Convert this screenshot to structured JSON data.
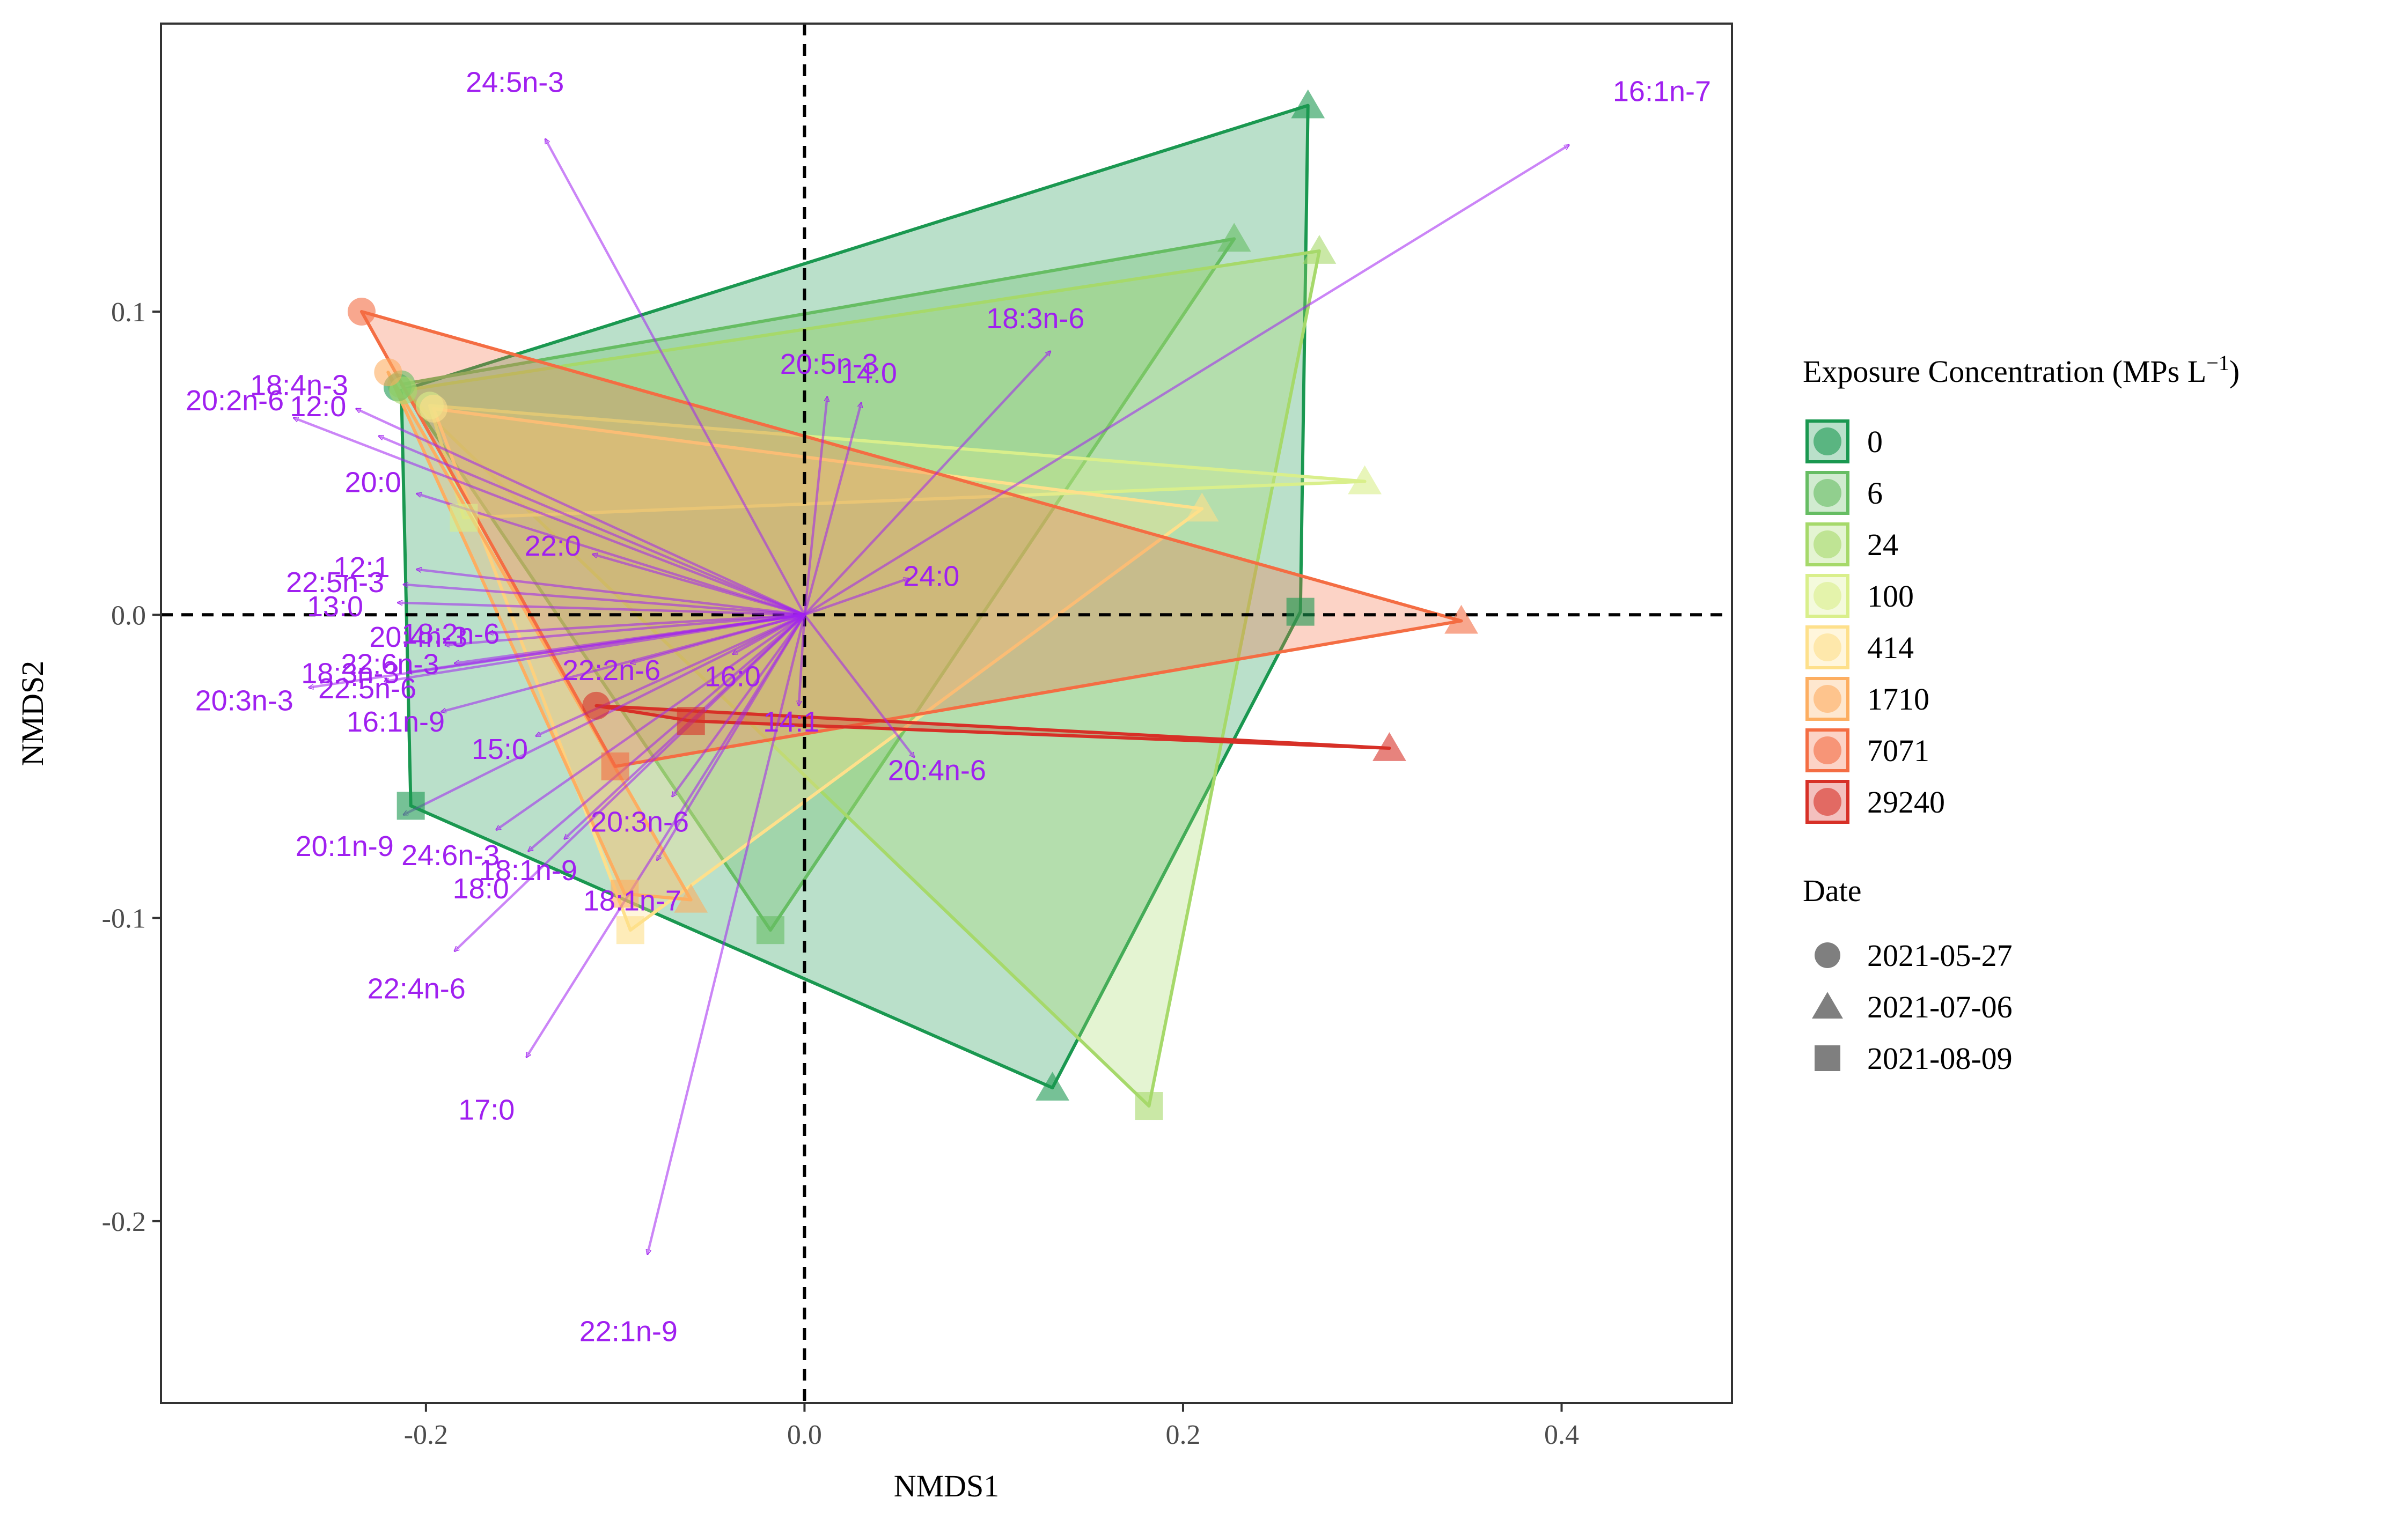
{
  "chart_data": {
    "type": "scatter",
    "subtype": "NMDS ordination biplot with convex hulls and fatty-acid vectors",
    "xlabel": "NMDS1",
    "ylabel": "NMDS2",
    "xlim": [
      -0.34,
      0.49
    ],
    "ylim": [
      -0.26,
      0.195
    ],
    "x_ticks": [
      -0.2,
      0.0,
      0.2,
      0.4
    ],
    "x_tick_labels": [
      "-0.2",
      "0.0",
      "0.2",
      "0.4"
    ],
    "y_ticks": [
      -0.2,
      -0.1,
      0.0,
      0.1
    ],
    "y_tick_labels": [
      "-0.2",
      "-0.1",
      "0.0",
      "0.1"
    ],
    "reference_lines": {
      "x": 0,
      "y": 0,
      "style": "dashed"
    },
    "grid": false,
    "legend_position": "right",
    "legend_fill": {
      "title_text": "Exposure Concentration (MPs L",
      "title_superscript": "−1",
      "title_suffix": ")",
      "entries": [
        {
          "label": "0",
          "color": "#1a9850"
        },
        {
          "label": "6",
          "color": "#66bd63"
        },
        {
          "label": "24",
          "color": "#a6d96a"
        },
        {
          "label": "100",
          "color": "#d9ef8b"
        },
        {
          "label": "414",
          "color": "#fee08b"
        },
        {
          "label": "1710",
          "color": "#fdae61"
        },
        {
          "label": "7071",
          "color": "#f46d43"
        },
        {
          "label": "29240",
          "color": "#d73027"
        }
      ]
    },
    "legend_shape": {
      "title": "Date",
      "entries": [
        {
          "label": "2021-05-27",
          "shape": "circle"
        },
        {
          "label": "2021-07-06",
          "shape": "triangle"
        },
        {
          "label": "2021-08-09",
          "shape": "square"
        }
      ]
    },
    "series": [
      {
        "name": "0",
        "color": "#1a9850",
        "hull": [
          [
            -0.213,
            0.074
          ],
          [
            0.266,
            0.168
          ],
          [
            0.262,
            0.001
          ],
          [
            0.131,
            -0.156
          ],
          [
            -0.208,
            -0.063
          ]
        ],
        "points": [
          {
            "x": -0.215,
            "y": 0.075,
            "shape": "circle"
          },
          {
            "x": 0.266,
            "y": 0.168,
            "shape": "triangle"
          },
          {
            "x": 0.131,
            "y": -0.156,
            "shape": "triangle"
          },
          {
            "x": 0.262,
            "y": 0.001,
            "shape": "square"
          },
          {
            "x": -0.208,
            "y": -0.063,
            "shape": "square"
          }
        ]
      },
      {
        "name": "6",
        "color": "#66bd63",
        "hull": [
          [
            -0.213,
            0.076
          ],
          [
            0.227,
            0.124
          ],
          [
            -0.018,
            -0.104
          ]
        ],
        "points": [
          {
            "x": -0.213,
            "y": 0.076,
            "shape": "circle"
          },
          {
            "x": 0.227,
            "y": 0.124,
            "shape": "triangle"
          },
          {
            "x": -0.018,
            "y": -0.104,
            "shape": "square"
          }
        ]
      },
      {
        "name": "24",
        "color": "#a6d96a",
        "hull": [
          [
            -0.212,
            0.074
          ],
          [
            0.272,
            0.12
          ],
          [
            0.182,
            -0.162
          ]
        ],
        "points": [
          {
            "x": -0.212,
            "y": 0.074,
            "shape": "circle"
          },
          {
            "x": 0.272,
            "y": 0.12,
            "shape": "triangle"
          },
          {
            "x": 0.182,
            "y": -0.162,
            "shape": "square"
          }
        ]
      },
      {
        "name": "100",
        "color": "#d9ef8b",
        "hull": [
          [
            -0.198,
            0.069
          ],
          [
            0.296,
            0.044
          ],
          [
            -0.18,
            0.032
          ]
        ],
        "points": [
          {
            "x": -0.198,
            "y": 0.069,
            "shape": "circle"
          },
          {
            "x": 0.296,
            "y": 0.044,
            "shape": "triangle"
          },
          {
            "x": -0.18,
            "y": 0.032,
            "shape": "square"
          }
        ]
      },
      {
        "name": "414",
        "color": "#fee08b",
        "hull": [
          [
            -0.196,
            0.068
          ],
          [
            0.21,
            0.035
          ],
          [
            -0.092,
            -0.104
          ]
        ],
        "points": [
          {
            "x": -0.196,
            "y": 0.068,
            "shape": "circle"
          },
          {
            "x": 0.21,
            "y": 0.035,
            "shape": "triangle"
          },
          {
            "x": -0.092,
            "y": -0.104,
            "shape": "square"
          }
        ]
      },
      {
        "name": "1710",
        "color": "#fdae61",
        "hull": [
          [
            -0.22,
            0.08
          ],
          [
            -0.06,
            -0.094
          ],
          [
            -0.095,
            -0.092
          ]
        ],
        "points": [
          {
            "x": -0.22,
            "y": 0.08,
            "shape": "circle"
          },
          {
            "x": -0.06,
            "y": -0.094,
            "shape": "triangle"
          },
          {
            "x": -0.095,
            "y": -0.092,
            "shape": "square"
          }
        ]
      },
      {
        "name": "7071",
        "color": "#f46d43",
        "hull": [
          [
            -0.234,
            0.1
          ],
          [
            0.347,
            -0.002
          ],
          [
            -0.1,
            -0.05
          ]
        ],
        "points": [
          {
            "x": -0.234,
            "y": 0.1,
            "shape": "circle"
          },
          {
            "x": 0.347,
            "y": -0.002,
            "shape": "triangle"
          },
          {
            "x": -0.1,
            "y": -0.05,
            "shape": "square"
          }
        ]
      },
      {
        "name": "29240",
        "color": "#d73027",
        "hull": [
          [
            -0.11,
            -0.03
          ],
          [
            0.309,
            -0.044
          ],
          [
            -0.06,
            -0.035
          ]
        ],
        "points": [
          {
            "x": -0.11,
            "y": -0.03,
            "shape": "circle"
          },
          {
            "x": 0.309,
            "y": -0.044,
            "shape": "triangle"
          },
          {
            "x": -0.06,
            "y": -0.035,
            "shape": "square"
          }
        ]
      }
    ],
    "vectors": [
      {
        "label": "24:5n-3",
        "x": -0.137,
        "y": 0.157,
        "lx": -0.153,
        "ly": 0.175
      },
      {
        "label": "16:1n-7",
        "x": 0.404,
        "y": 0.155,
        "lx": 0.453,
        "ly": 0.172
      },
      {
        "label": "18:3n-6",
        "x": 0.13,
        "y": 0.087,
        "lx": 0.122,
        "ly": 0.097
      },
      {
        "label": "20:5n-3",
        "x": 0.012,
        "y": 0.072,
        "lx": 0.013,
        "ly": 0.082
      },
      {
        "label": "14:0",
        "x": 0.03,
        "y": 0.07,
        "lx": 0.034,
        "ly": 0.079
      },
      {
        "label": "18:4n-3",
        "x": -0.237,
        "y": 0.068,
        "lx": -0.267,
        "ly": 0.075
      },
      {
        "label": "12:0",
        "x": -0.225,
        "y": 0.059,
        "lx": -0.257,
        "ly": 0.068
      },
      {
        "label": "20:2n-6",
        "x": -0.27,
        "y": 0.065,
        "lx": -0.301,
        "ly": 0.07
      },
      {
        "label": "20:0",
        "x": -0.205,
        "y": 0.04,
        "lx": -0.228,
        "ly": 0.043
      },
      {
        "label": "22:0",
        "x": -0.112,
        "y": 0.02,
        "lx": -0.133,
        "ly": 0.022
      },
      {
        "label": "24:0",
        "x": 0.055,
        "y": 0.012,
        "lx": 0.067,
        "ly": 0.012
      },
      {
        "label": "12:1",
        "x": -0.205,
        "y": 0.015,
        "lx": -0.234,
        "ly": 0.015
      },
      {
        "label": "22:5n-3",
        "x": -0.212,
        "y": 0.01,
        "lx": -0.248,
        "ly": 0.01
      },
      {
        "label": "13:0",
        "x": -0.215,
        "y": 0.004,
        "lx": -0.248,
        "ly": 0.002
      },
      {
        "label": "18:2n-6",
        "x": -0.167,
        "y": -0.006,
        "lx": -0.187,
        "ly": -0.007
      },
      {
        "label": "20:4n-3",
        "x": -0.19,
        "y": -0.01,
        "lx": -0.204,
        "ly": -0.008
      },
      {
        "label": "22:6n-3",
        "x": -0.185,
        "y": -0.016,
        "lx": -0.219,
        "ly": -0.017
      },
      {
        "label": "18:3n-3",
        "x": -0.21,
        "y": -0.019,
        "lx": -0.24,
        "ly": -0.02
      },
      {
        "label": "22:5n-6",
        "x": -0.222,
        "y": -0.022,
        "lx": -0.231,
        "ly": -0.025
      },
      {
        "label": "22:2n-6",
        "x": -0.092,
        "y": -0.016,
        "lx": -0.102,
        "ly": -0.019
      },
      {
        "label": "16:0",
        "x": -0.038,
        "y": -0.013,
        "lx": -0.038,
        "ly": -0.021
      },
      {
        "label": "20:3n-3",
        "x": -0.262,
        "y": -0.024,
        "lx": -0.296,
        "ly": -0.029
      },
      {
        "label": "16:1n-9",
        "x": -0.192,
        "y": -0.032,
        "lx": -0.216,
        "ly": -0.036
      },
      {
        "label": "14:1",
        "x": -0.003,
        "y": -0.03,
        "lx": -0.007,
        "ly": -0.036
      },
      {
        "label": "15:0",
        "x": -0.142,
        "y": -0.04,
        "lx": -0.161,
        "ly": -0.045
      },
      {
        "label": "20:4n-6",
        "x": 0.058,
        "y": -0.047,
        "lx": 0.07,
        "ly": -0.052
      },
      {
        "label": "20:1n-9",
        "x": -0.212,
        "y": -0.066,
        "lx": -0.243,
        "ly": -0.077
      },
      {
        "label": "20:3n-6",
        "x": -0.07,
        "y": -0.06,
        "lx": -0.087,
        "ly": -0.069
      },
      {
        "label": "24:6n-3",
        "x": -0.163,
        "y": -0.071,
        "lx": -0.187,
        "ly": -0.08
      },
      {
        "label": "18:1n-9",
        "x": -0.127,
        "y": -0.074,
        "lx": -0.146,
        "ly": -0.085
      },
      {
        "label": "18:0",
        "x": -0.146,
        "y": -0.078,
        "lx": -0.171,
        "ly": -0.091
      },
      {
        "label": "18:1n-7",
        "x": -0.078,
        "y": -0.081,
        "lx": -0.091,
        "ly": -0.095
      },
      {
        "label": "22:4n-6",
        "x": -0.185,
        "y": -0.111,
        "lx": -0.205,
        "ly": -0.124
      },
      {
        "label": "17:0",
        "x": -0.147,
        "y": -0.146,
        "lx": -0.168,
        "ly": -0.164
      },
      {
        "label": "22:1n-9",
        "x": -0.083,
        "y": -0.211,
        "lx": -0.093,
        "ly": -0.237
      }
    ]
  }
}
